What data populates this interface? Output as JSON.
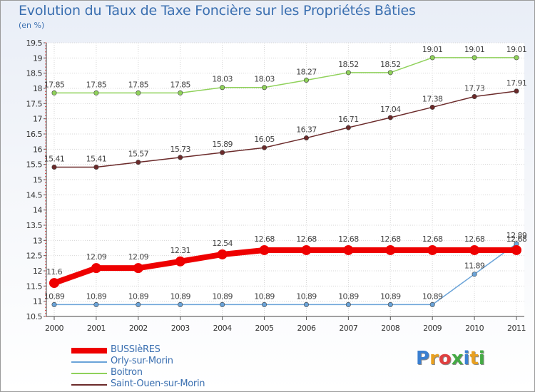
{
  "header": {
    "title": "Evolution du Taux de Taxe Foncière sur les Propriétés Bâties",
    "subtitle": "(en %)"
  },
  "logo": {
    "text": "Proxiti"
  },
  "chart_data": {
    "type": "line",
    "title": "Evolution du Taux de Taxe Foncière sur les Propriétés Bâties",
    "ylabel": "(en %)",
    "xlabel": "",
    "x": [
      "2000",
      "2001",
      "2002",
      "2003",
      "2004",
      "2005",
      "2006",
      "2007",
      "2008",
      "2009",
      "2010",
      "2011"
    ],
    "ylim": [
      10.5,
      19.5
    ],
    "yticks": [
      "10.5",
      "11",
      "11.5",
      "12",
      "12.5",
      "13",
      "13.5",
      "14",
      "14.5",
      "15",
      "15.5",
      "16",
      "16.5",
      "17",
      "17.5",
      "18",
      "18.5",
      "19",
      "19.5"
    ],
    "legend_position": "bottom-left",
    "series": [
      {
        "name": "BUSSIèRES",
        "color": "#ee0000",
        "emphasis": true,
        "values": [
          11.6,
          12.09,
          12.09,
          12.31,
          12.54,
          12.68,
          12.68,
          12.68,
          12.68,
          12.68,
          12.68,
          12.68
        ],
        "labels": [
          "11.6",
          "12.09",
          "12.09",
          "12.31",
          "12.54",
          "12.68",
          "12.68",
          "12.68",
          "12.68",
          "12.68",
          "12.68",
          "12.68"
        ]
      },
      {
        "name": "Orly-sur-Morin",
        "color": "#6aa3d8",
        "emphasis": false,
        "values": [
          10.89,
          10.89,
          10.89,
          10.89,
          10.89,
          10.89,
          10.89,
          10.89,
          10.89,
          10.89,
          11.89,
          12.89
        ],
        "labels": [
          "10.89",
          "10.89",
          "10.89",
          "10.89",
          "10.89",
          "10.89",
          "10.89",
          "10.89",
          "10.89",
          "10.89",
          "11.89",
          "12.89"
        ]
      },
      {
        "name": "Boitron",
        "color": "#8fd15a",
        "emphasis": false,
        "values": [
          17.85,
          17.85,
          17.85,
          17.85,
          18.03,
          18.03,
          18.27,
          18.52,
          18.52,
          19.01,
          19.01,
          19.01
        ],
        "labels": [
          "17.85",
          "17.85",
          "17.85",
          "17.85",
          "18.03",
          "18.03",
          "18.27",
          "18.52",
          "18.52",
          "19.01",
          "19.01",
          "19.01"
        ]
      },
      {
        "name": "Saint-Ouen-sur-Morin",
        "color": "#6b2a2a",
        "emphasis": false,
        "values": [
          15.41,
          15.41,
          15.57,
          15.73,
          15.89,
          16.05,
          16.37,
          16.71,
          17.04,
          17.38,
          17.73,
          17.91
        ],
        "labels": [
          "15.41",
          "15.41",
          "15.57",
          "15.73",
          "15.89",
          "16.05",
          "16.37",
          "16.71",
          "17.04",
          "17.38",
          "17.73",
          "17.91"
        ]
      }
    ]
  }
}
